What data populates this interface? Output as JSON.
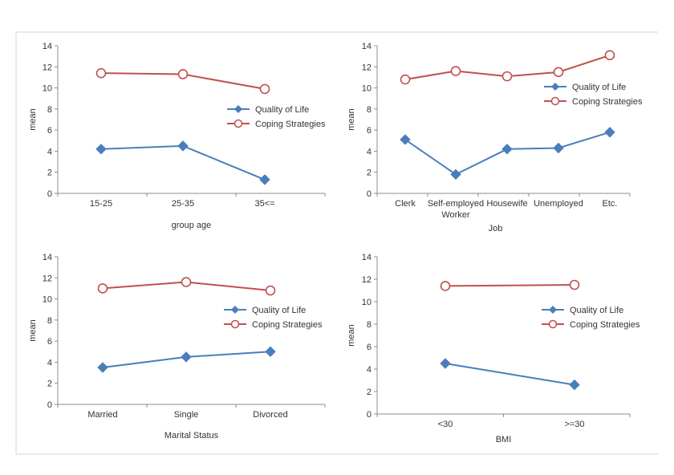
{
  "chart_data": [
    {
      "type": "line",
      "title": "",
      "xlabel": "group age",
      "ylabel": "mean",
      "ylim": [
        0,
        14
      ],
      "yticks": [
        0,
        2,
        4,
        6,
        8,
        10,
        12,
        14
      ],
      "categories": [
        "15-25",
        "25-35",
        "35<="
      ],
      "series": [
        {
          "name": "Quality of Life",
          "values": [
            4.2,
            4.5,
            1.3
          ],
          "color": "#4a7ebb",
          "marker": "diamond"
        },
        {
          "name": "Coping Strategies",
          "values": [
            11.4,
            11.3,
            9.9
          ],
          "color": "#c0504d",
          "marker": "circle"
        }
      ],
      "legend": "right"
    },
    {
      "type": "line",
      "title": "",
      "xlabel": "Job",
      "ylabel": "mean",
      "ylim": [
        0,
        14
      ],
      "yticks": [
        0,
        2,
        4,
        6,
        8,
        10,
        12,
        14
      ],
      "categories": [
        "Clerk",
        "Self-employed\nWorker",
        "Housewife",
        "Unemployed",
        "Etc."
      ],
      "series": [
        {
          "name": "Quality of Life",
          "values": [
            5.1,
            1.8,
            4.2,
            4.3,
            5.8
          ],
          "color": "#4a7ebb",
          "marker": "diamond"
        },
        {
          "name": "Coping Strategies",
          "values": [
            10.8,
            11.6,
            11.1,
            11.5,
            13.1
          ],
          "color": "#c0504d",
          "marker": "circle"
        }
      ],
      "legend": "top-right"
    },
    {
      "type": "line",
      "title": "",
      "xlabel": "Marital Status",
      "ylabel": "mean",
      "ylim": [
        0,
        14
      ],
      "yticks": [
        0,
        2,
        4,
        6,
        8,
        10,
        12,
        14
      ],
      "categories": [
        "Married",
        "Single",
        "Divorced"
      ],
      "series": [
        {
          "name": "Quality of Life",
          "values": [
            3.5,
            4.5,
            5.0
          ],
          "color": "#4a7ebb",
          "marker": "diamond"
        },
        {
          "name": "Coping Strategies",
          "values": [
            11.0,
            11.6,
            10.8
          ],
          "color": "#c0504d",
          "marker": "circle"
        }
      ],
      "legend": "right"
    },
    {
      "type": "line",
      "title": "",
      "xlabel": "BMI",
      "ylabel": "mean",
      "ylim": [
        0,
        14
      ],
      "yticks": [
        0,
        2,
        4,
        6,
        8,
        10,
        12,
        14
      ],
      "categories": [
        "<30",
        ">=30"
      ],
      "series": [
        {
          "name": "Quality of Life",
          "values": [
            4.5,
            2.6
          ],
          "color": "#4a7ebb",
          "marker": "diamond"
        },
        {
          "name": "Coping Strategies",
          "values": [
            11.4,
            11.5
          ],
          "color": "#c0504d",
          "marker": "circle"
        }
      ],
      "legend": "right"
    }
  ]
}
